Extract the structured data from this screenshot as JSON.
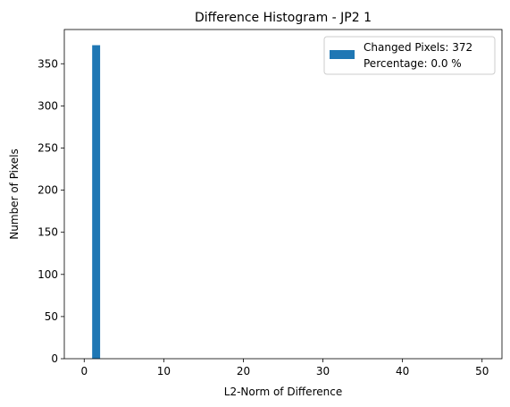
{
  "chart_data": {
    "type": "bar",
    "title": "Difference Histogram - JP2 1",
    "xlabel": "L2-Norm of Difference",
    "ylabel": "Number of Pixels",
    "xlim": [
      -2.5,
      52.5
    ],
    "ylim": [
      0,
      390.6
    ],
    "xticks": [
      0,
      10,
      20,
      30,
      40,
      50
    ],
    "yticks": [
      0,
      50,
      100,
      150,
      200,
      250,
      300,
      350
    ],
    "bars": [
      {
        "x0": 1.0,
        "x1": 2.0,
        "value": 372
      }
    ],
    "bar_color": "#1f77b4",
    "grid": false,
    "legend": {
      "position": "top-right",
      "lines": [
        "Changed Pixels: 372",
        "Percentage: 0.0 %"
      ]
    }
  }
}
